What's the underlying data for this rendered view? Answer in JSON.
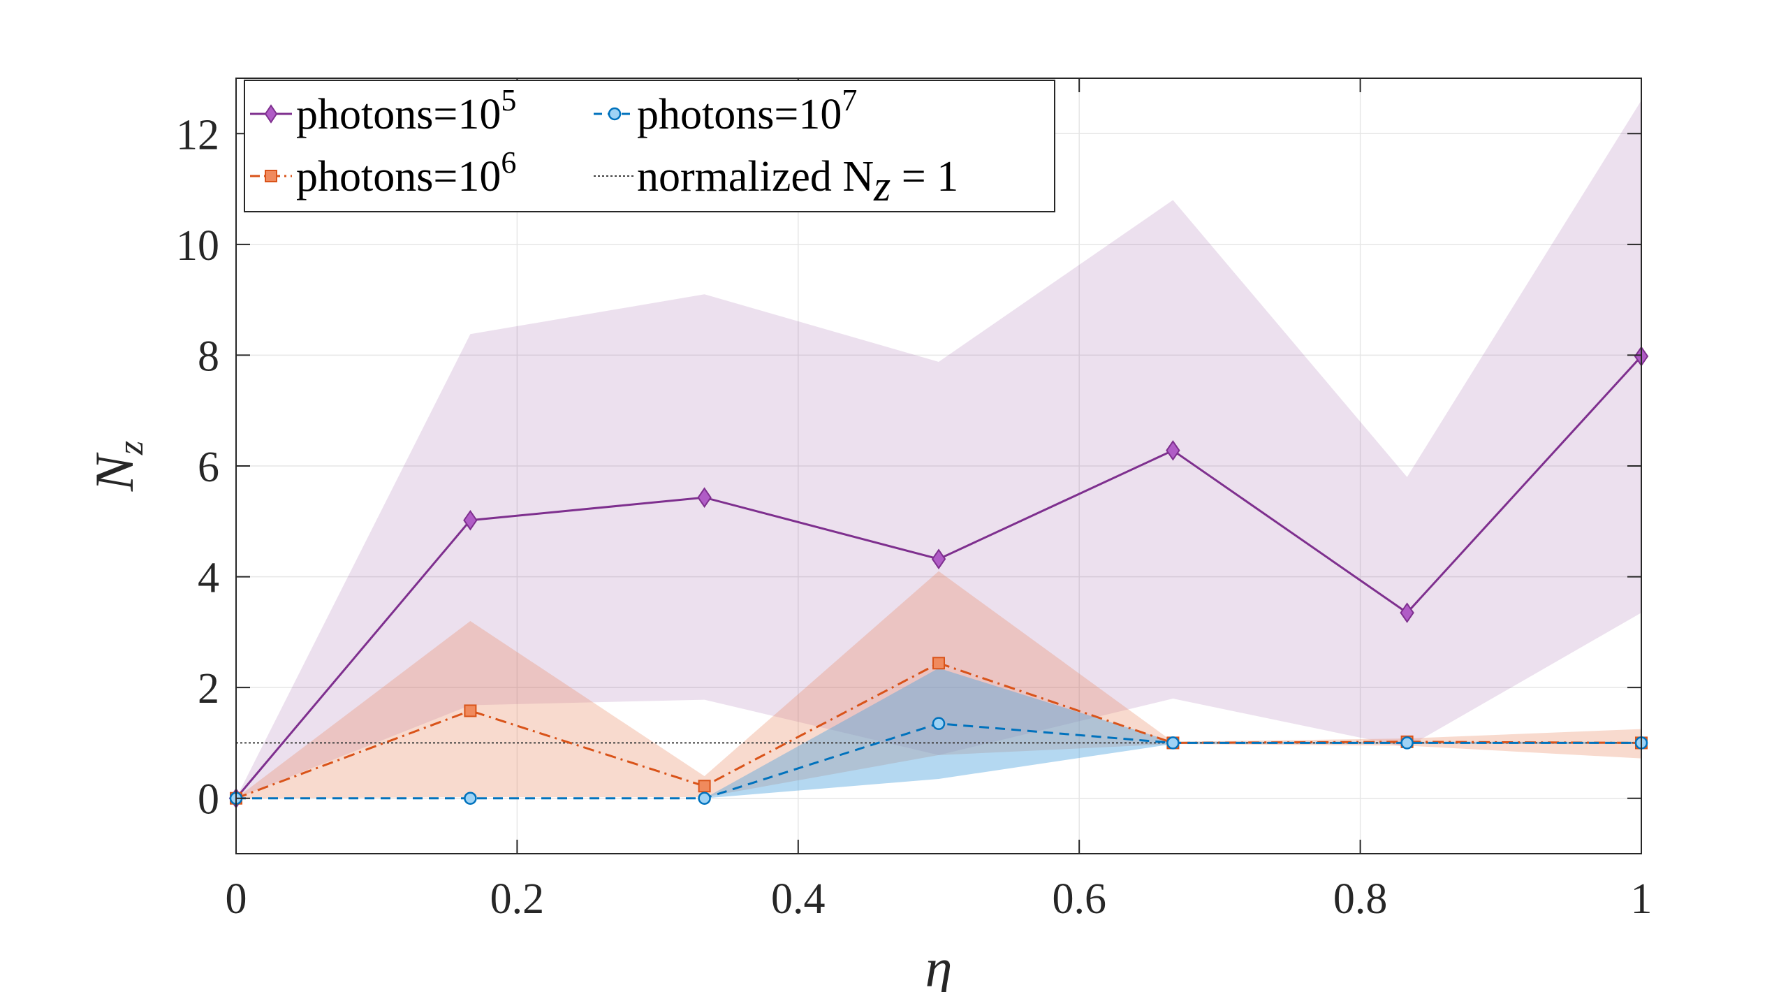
{
  "chart_data": {
    "type": "line",
    "title": "",
    "xlabel": "η",
    "ylabel": "N",
    "ylabel_subscript": "z",
    "xlim": [
      0,
      1
    ],
    "ylim": [
      -1,
      13
    ],
    "xticks": [
      0,
      0.2,
      0.4,
      0.6,
      0.8,
      1
    ],
    "xtick_labels": [
      "0",
      "0.2",
      "0.4",
      "0.6",
      "0.8",
      "1"
    ],
    "yticks": [
      0,
      2,
      4,
      6,
      8,
      10,
      12
    ],
    "ytick_labels": [
      "0",
      "2",
      "4",
      "6",
      "8",
      "10",
      "12"
    ],
    "grid": true,
    "legend_position": "top-left",
    "x": [
      0,
      0.1667,
      0.3333,
      0.5,
      0.6667,
      0.8333,
      1
    ],
    "series": [
      {
        "name": "photons=10",
        "exponent": "5",
        "color": "#7e2f8e",
        "marker_fill": "#b05cc6",
        "marker": "diamond",
        "line_style": "solid",
        "band_color": "#7e2f8e",
        "values": [
          0,
          5.02,
          5.43,
          4.32,
          6.28,
          3.35,
          7.98
        ],
        "band_upper": [
          0,
          8.38,
          9.1,
          7.88,
          10.8,
          5.8,
          12.6
        ],
        "band_lower": [
          0,
          1.68,
          1.78,
          0.78,
          1.8,
          0.92,
          3.35
        ]
      },
      {
        "name": "photons=10",
        "exponent": "6",
        "color": "#d95319",
        "marker_fill": "#f08a5d",
        "marker": "square",
        "line_style": "dashdot",
        "band_color": "#e8845c",
        "values": [
          0,
          1.58,
          0.22,
          2.44,
          1.0,
          1.02,
          1.0
        ],
        "band_upper": [
          0,
          3.2,
          0.4,
          4.1,
          1.02,
          1.08,
          1.25
        ],
        "band_lower": [
          0,
          0.02,
          0.02,
          0.78,
          0.98,
          0.95,
          0.72
        ]
      },
      {
        "name": "photons=10",
        "exponent": "7",
        "color": "#0072bd",
        "marker_fill": "#9fd3f5",
        "marker": "circle",
        "line_style": "dashed",
        "band_color": "#4da3de",
        "values": [
          0,
          0,
          0,
          1.35,
          1.0,
          1.0,
          1.0
        ],
        "band_upper": [
          0,
          0,
          0,
          2.35,
          1.02,
          1.02,
          1.02
        ],
        "band_lower": [
          0,
          0,
          0,
          0.35,
          0.98,
          0.98,
          0.98
        ]
      },
      {
        "name": "normalized N",
        "subscript": "z",
        "suffix": " = 1",
        "color": "#404040",
        "marker": "none",
        "line_style": "dotted",
        "values": [
          1,
          1,
          1,
          1,
          1,
          1,
          1
        ]
      }
    ]
  }
}
